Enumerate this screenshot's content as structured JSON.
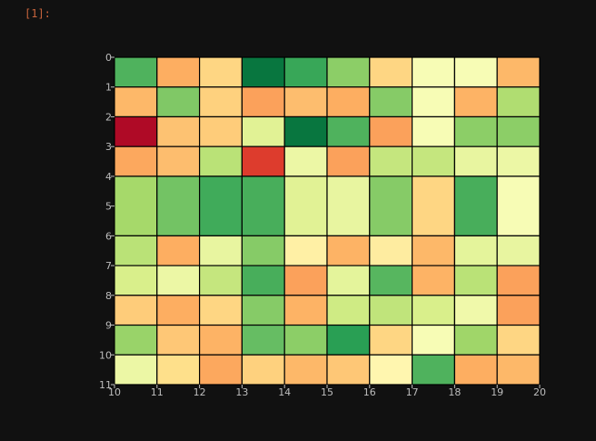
{
  "cell_prompt": "[1]:",
  "chart_data": {
    "type": "heatmap",
    "title": "",
    "xlabel": "",
    "ylabel": "",
    "xlim": [
      10,
      20
    ],
    "ylim": [
      0,
      11
    ],
    "y_inverted": true,
    "x_ticks": [
      10,
      11,
      12,
      13,
      14,
      15,
      16,
      17,
      18,
      19,
      20
    ],
    "y_ticks": [
      0,
      1,
      2,
      3,
      4,
      5,
      6,
      7,
      8,
      9,
      10,
      11
    ],
    "x_edges": [
      10,
      11,
      12,
      13,
      14,
      15,
      16,
      17,
      18,
      19,
      20
    ],
    "y_edges": [
      0,
      1,
      2,
      3,
      4,
      6,
      7,
      8,
      9,
      10,
      11
    ],
    "colormap": "RdYlGn",
    "vmin": 0,
    "vmax": 1,
    "grid_lines": true,
    "values": [
      [
        0.83,
        0.3,
        0.38,
        0.97,
        0.86,
        0.74,
        0.38,
        0.52,
        0.52,
        0.32
      ],
      [
        0.32,
        0.76,
        0.37,
        0.28,
        0.33,
        0.3,
        0.75,
        0.52,
        0.31,
        0.68
      ],
      [
        0.02,
        0.34,
        0.36,
        0.58,
        0.97,
        0.83,
        0.28,
        0.52,
        0.74,
        0.74
      ],
      [
        0.29,
        0.33,
        0.66,
        0.12,
        0.55,
        0.28,
        0.64,
        0.64,
        0.56,
        0.55
      ],
      [
        0.7,
        0.78,
        0.85,
        0.84,
        0.58,
        0.56,
        0.75,
        0.38,
        0.84,
        0.52
      ],
      [
        0.66,
        0.3,
        0.56,
        0.75,
        0.45,
        0.31,
        0.44,
        0.32,
        0.57,
        0.56
      ],
      [
        0.6,
        0.55,
        0.64,
        0.84,
        0.28,
        0.57,
        0.82,
        0.31,
        0.66,
        0.28
      ],
      [
        0.36,
        0.3,
        0.38,
        0.75,
        0.31,
        0.62,
        0.65,
        0.6,
        0.54,
        0.28
      ],
      [
        0.72,
        0.35,
        0.31,
        0.8,
        0.74,
        0.88,
        0.38,
        0.52,
        0.71,
        0.38
      ],
      [
        0.55,
        0.4,
        0.29,
        0.37,
        0.32,
        0.35,
        0.47,
        0.83,
        0.3,
        0.32
      ]
    ]
  }
}
